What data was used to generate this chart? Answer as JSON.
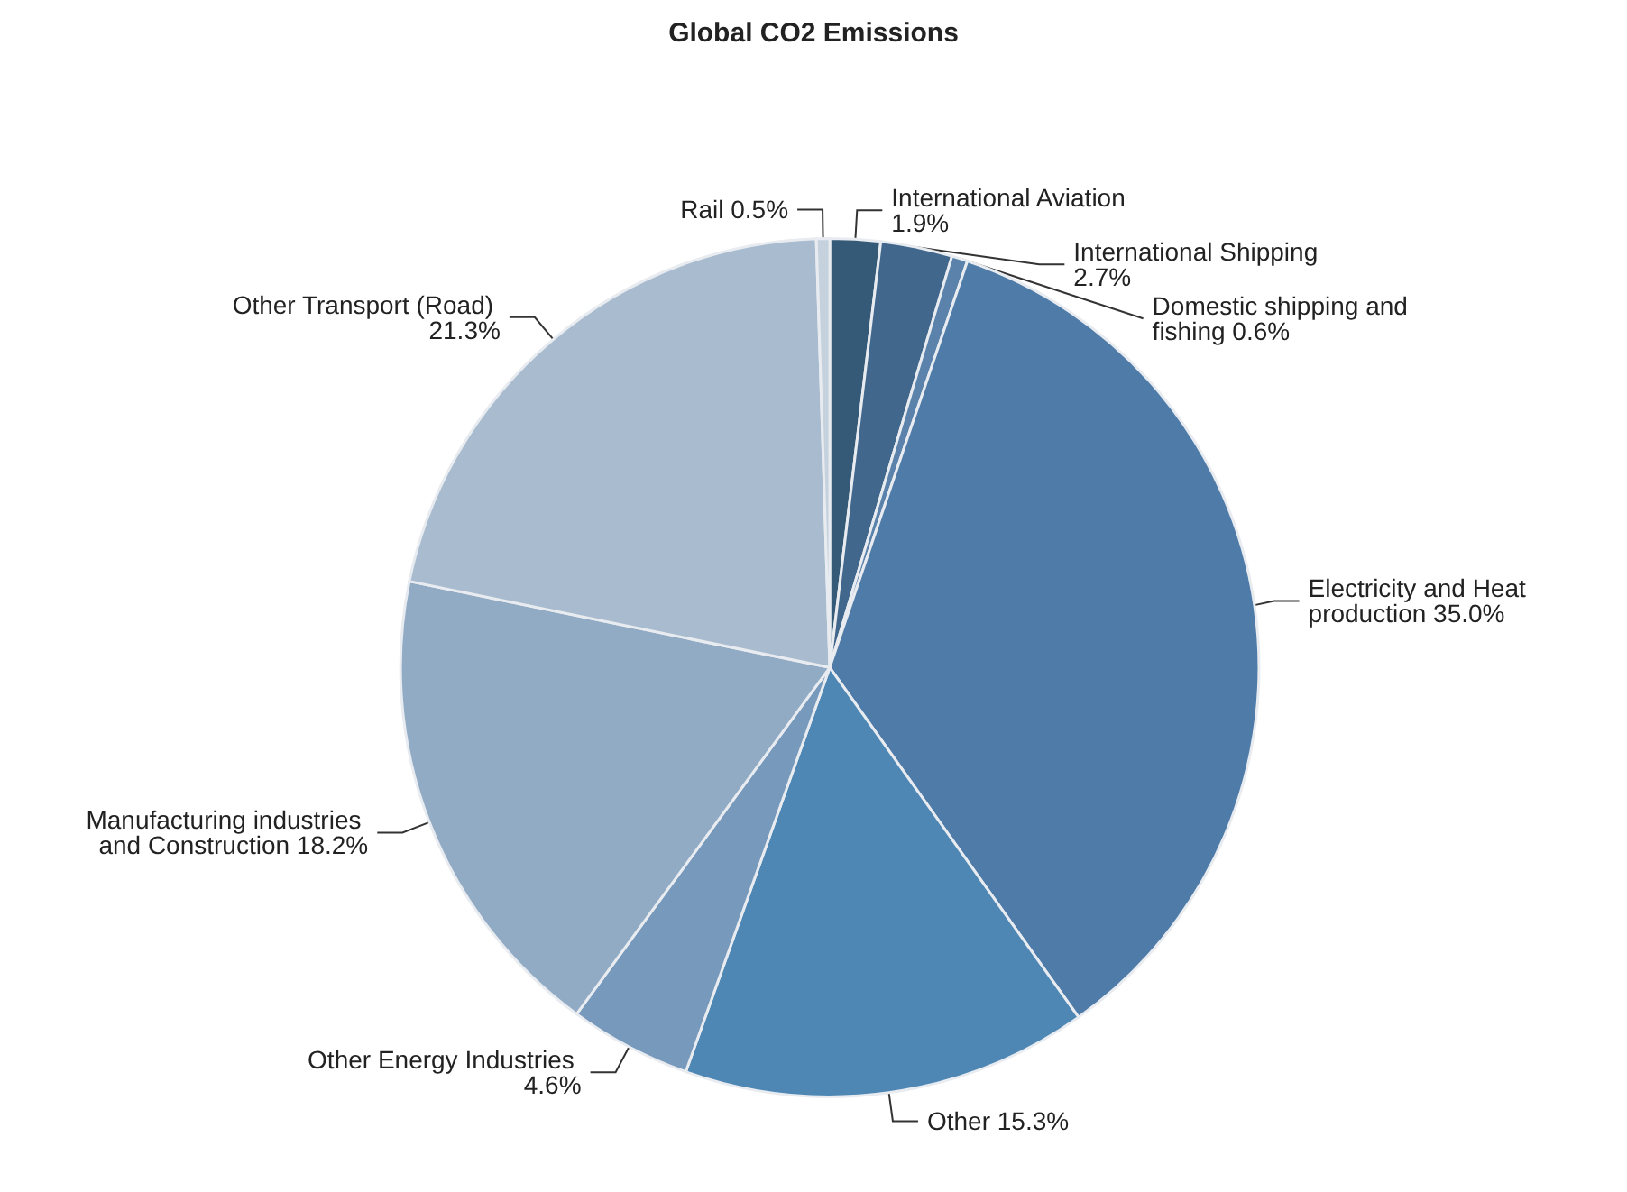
{
  "chart_data": {
    "type": "pie",
    "title": "Global CO2 Emissions",
    "categories": [
      "International Aviation",
      "International Shipping",
      "Domestic shipping and fishing",
      "Electricity and Heat production",
      "Other",
      "Other Energy Industries",
      "Manufacturing industries and Construction",
      "Other Transport (Road)",
      "Rail"
    ],
    "values": [
      1.9,
      2.7,
      0.6,
      35.0,
      15.3,
      4.6,
      18.2,
      21.3,
      0.5
    ],
    "colors": [
      "#345a78",
      "#41688c",
      "#5a82aa",
      "#4f7ba8",
      "#4e86b4",
      "#7799bb",
      "#92abc5",
      "#a9bccf",
      "#c5d2de"
    ],
    "value_labels": [
      "1.9%",
      "2.7%",
      "0.6%",
      "35.0%",
      "15.3%",
      "4.6%",
      "18.2%",
      "21.3%",
      "0.5%"
    ],
    "legend": false
  }
}
